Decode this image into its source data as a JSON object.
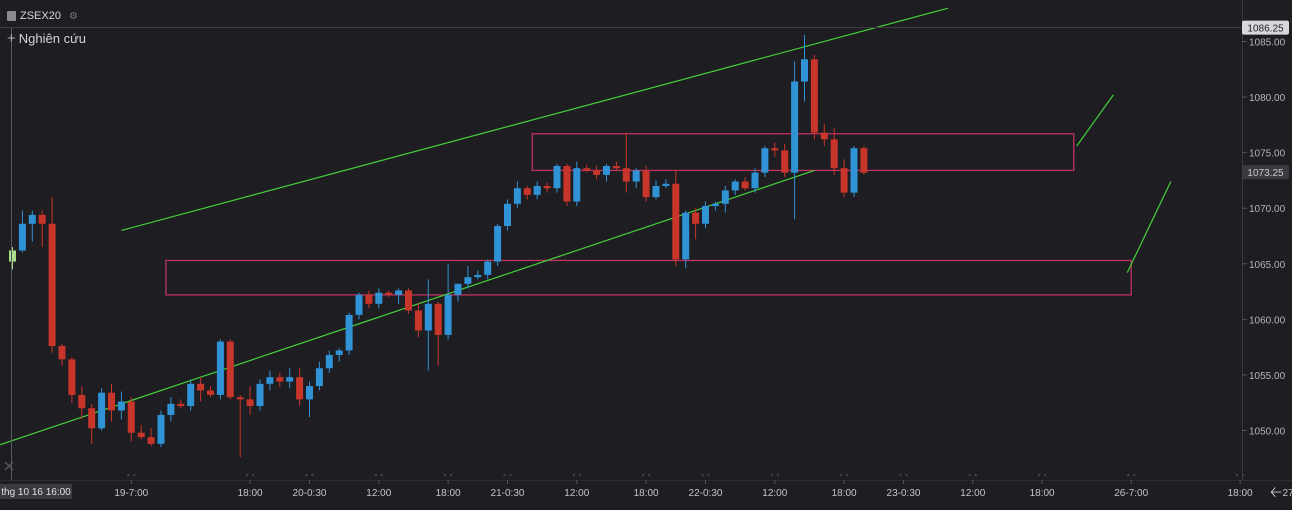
{
  "header": {
    "symbol": "ZSEX20",
    "study_label": "Nghiên cứu"
  },
  "price_labels": {
    "top": "1086.25",
    "current": "1073.25"
  },
  "footer": {
    "crosshair_time": "thg 10 16 16:00",
    "back_icon": "arrow-left-icon"
  },
  "chart_data": {
    "type": "candlestick",
    "title": "ZSEX20",
    "ylim": [
      1046.5,
      1087.5
    ],
    "yticks": [
      1050,
      1055,
      1060,
      1065,
      1070,
      1075,
      1080,
      1085
    ],
    "ytick_labels": [
      "1050.00",
      "1055.00",
      "1060.00",
      "1065.00",
      "1070.00",
      "1075.00",
      "1080.00",
      "1085.00"
    ],
    "xlim": [
      0,
      180
    ],
    "xticks": [
      {
        "x": 12,
        "label": "19-7:00"
      },
      {
        "x": 24,
        "label": "18:00"
      },
      {
        "x": 30,
        "label": "20-0:30"
      },
      {
        "x": 37,
        "label": "12:00"
      },
      {
        "x": 44,
        "label": "18:00"
      },
      {
        "x": 50,
        "label": "21-0:30"
      },
      {
        "x": 57,
        "label": "12:00"
      },
      {
        "x": 64,
        "label": "18:00"
      },
      {
        "x": 70,
        "label": "22-0:30"
      },
      {
        "x": 77,
        "label": "12:00"
      },
      {
        "x": 84,
        "label": "18:00"
      },
      {
        "x": 90,
        "label": "23-0:30"
      },
      {
        "x": 97,
        "label": "12:00"
      },
      {
        "x": 104,
        "label": "18:00"
      },
      {
        "x": 113,
        "label": "26-7:00"
      },
      {
        "x": 124,
        "label": "18:00"
      },
      {
        "x": 130,
        "label": "27-0:30"
      }
    ],
    "colors": {
      "up": "#2f93d6",
      "down": "#c8352a",
      "trend": "#44d13a",
      "zone": "#c0335e",
      "first": "#a6e08a"
    },
    "candles": [
      [
        1065.2,
        1066.5,
        1064.5,
        1066.2
      ],
      [
        1066.2,
        1069.8,
        1066.0,
        1068.6
      ],
      [
        1068.6,
        1069.8,
        1067.0,
        1069.4
      ],
      [
        1069.4,
        1069.8,
        1066.5,
        1068.6
      ],
      [
        1068.6,
        1071.0,
        1057.0,
        1057.6
      ],
      [
        1057.6,
        1057.8,
        1055.8,
        1056.4
      ],
      [
        1056.4,
        1056.6,
        1052.5,
        1053.2
      ],
      [
        1053.2,
        1054.0,
        1051.0,
        1052.0
      ],
      [
        1052.0,
        1052.4,
        1048.8,
        1050.2
      ],
      [
        1050.2,
        1053.8,
        1050.0,
        1053.4
      ],
      [
        1053.4,
        1054.2,
        1050.8,
        1051.8
      ],
      [
        1051.8,
        1053.5,
        1051.0,
        1052.6
      ],
      [
        1052.6,
        1053.0,
        1049.0,
        1049.8
      ],
      [
        1049.8,
        1050.5,
        1049.2,
        1049.4
      ],
      [
        1049.4,
        1050.2,
        1048.6,
        1048.8
      ],
      [
        1048.8,
        1051.8,
        1048.5,
        1051.4
      ],
      [
        1051.4,
        1053.0,
        1050.8,
        1052.4
      ],
      [
        1052.4,
        1052.8,
        1052.0,
        1052.2
      ],
      [
        1052.2,
        1054.6,
        1051.8,
        1054.2
      ],
      [
        1054.2,
        1054.8,
        1052.6,
        1053.6
      ],
      [
        1053.6,
        1054.0,
        1053.0,
        1053.2
      ],
      [
        1053.2,
        1058.2,
        1052.8,
        1058.0
      ],
      [
        1058.0,
        1058.2,
        1052.8,
        1053.0
      ],
      [
        1053.0,
        1053.2,
        1047.6,
        1052.8
      ],
      [
        1052.8,
        1054.0,
        1051.4,
        1052.2
      ],
      [
        1052.2,
        1054.6,
        1051.8,
        1054.2
      ],
      [
        1054.2,
        1055.4,
        1053.6,
        1054.8
      ],
      [
        1054.8,
        1055.2,
        1053.9,
        1054.4
      ],
      [
        1054.4,
        1055.6,
        1053.8,
        1054.8
      ],
      [
        1054.8,
        1055.6,
        1052.2,
        1052.8
      ],
      [
        1052.8,
        1054.4,
        1051.2,
        1054.0
      ],
      [
        1054.0,
        1056.2,
        1053.6,
        1055.6
      ],
      [
        1055.6,
        1057.2,
        1055.2,
        1056.8
      ],
      [
        1056.8,
        1057.4,
        1056.2,
        1057.2
      ],
      [
        1057.2,
        1060.6,
        1056.8,
        1060.4
      ],
      [
        1060.4,
        1062.4,
        1060.0,
        1062.2
      ],
      [
        1062.2,
        1062.6,
        1061.0,
        1061.4
      ],
      [
        1061.4,
        1062.8,
        1061.0,
        1062.4
      ],
      [
        1062.4,
        1062.6,
        1062.0,
        1062.2
      ],
      [
        1062.2,
        1062.8,
        1061.4,
        1062.6
      ],
      [
        1062.6,
        1062.8,
        1060.5,
        1060.8
      ],
      [
        1060.8,
        1061.5,
        1058.4,
        1059.0
      ],
      [
        1059.0,
        1063.6,
        1055.4,
        1061.4
      ],
      [
        1061.4,
        1061.6,
        1055.8,
        1058.6
      ],
      [
        1058.6,
        1065.0,
        1058.2,
        1062.2
      ],
      [
        1062.2,
        1063.2,
        1061.6,
        1063.2
      ],
      [
        1063.2,
        1064.8,
        1062.8,
        1063.8
      ],
      [
        1063.8,
        1064.4,
        1063.6,
        1064.0
      ],
      [
        1064.0,
        1065.4,
        1063.6,
        1065.2
      ],
      [
        1065.2,
        1068.6,
        1064.8,
        1068.4
      ],
      [
        1068.4,
        1070.8,
        1068.0,
        1070.4
      ],
      [
        1070.4,
        1072.4,
        1070.0,
        1071.8
      ],
      [
        1071.8,
        1072.0,
        1070.8,
        1071.2
      ],
      [
        1071.2,
        1072.4,
        1070.8,
        1072.0
      ],
      [
        1072.0,
        1072.3,
        1071.4,
        1071.8
      ],
      [
        1071.8,
        1074.0,
        1071.4,
        1073.8
      ],
      [
        1073.8,
        1074.0,
        1070.2,
        1070.6
      ],
      [
        1070.6,
        1074.2,
        1070.2,
        1073.6
      ],
      [
        1073.6,
        1073.9,
        1073.2,
        1073.4
      ],
      [
        1073.4,
        1073.8,
        1072.6,
        1073.0
      ],
      [
        1073.0,
        1074.0,
        1072.4,
        1073.8
      ],
      [
        1073.8,
        1074.2,
        1073.4,
        1073.6
      ],
      [
        1073.6,
        1076.8,
        1071.4,
        1072.4
      ],
      [
        1072.4,
        1073.6,
        1071.8,
        1073.4
      ],
      [
        1073.4,
        1073.8,
        1070.6,
        1071.0
      ],
      [
        1071.0,
        1072.5,
        1070.8,
        1072.0
      ],
      [
        1072.0,
        1072.6,
        1071.8,
        1072.2
      ],
      [
        1072.2,
        1073.4,
        1064.8,
        1065.4
      ],
      [
        1065.4,
        1069.8,
        1064.6,
        1069.6
      ],
      [
        1069.6,
        1070.0,
        1067.2,
        1068.6
      ],
      [
        1068.6,
        1070.6,
        1068.2,
        1070.2
      ],
      [
        1070.2,
        1070.6,
        1069.8,
        1070.4
      ],
      [
        1070.4,
        1072.0,
        1069.6,
        1071.6
      ],
      [
        1071.6,
        1072.6,
        1071.2,
        1072.4
      ],
      [
        1072.4,
        1072.8,
        1071.6,
        1071.8
      ],
      [
        1071.8,
        1073.6,
        1071.4,
        1073.2
      ],
      [
        1073.2,
        1075.6,
        1072.8,
        1075.4
      ],
      [
        1075.4,
        1075.9,
        1074.6,
        1075.2
      ],
      [
        1075.2,
        1075.8,
        1072.8,
        1073.2
      ],
      [
        1073.2,
        1083.2,
        1069.0,
        1081.4
      ],
      [
        1081.4,
        1085.6,
        1079.6,
        1083.4
      ],
      [
        1083.4,
        1083.8,
        1076.2,
        1076.8
      ],
      [
        1076.8,
        1077.6,
        1075.6,
        1076.2
      ],
      [
        1076.2,
        1077.2,
        1073.0,
        1073.6
      ],
      [
        1073.6,
        1074.4,
        1071.0,
        1071.4
      ],
      [
        1071.4,
        1075.6,
        1071.0,
        1075.4
      ],
      [
        1075.4,
        1075.6,
        1073.0,
        1073.2
      ]
    ],
    "trendlines": [
      {
        "x": [
          -3,
          81
        ],
        "y": [
          1048.2,
          1073.4
        ]
      },
      {
        "x": [
          11,
          94.5
        ],
        "y": [
          1068.0,
          1088.0
        ]
      },
      {
        "x": [
          107.5,
          111.2
        ],
        "y": [
          1075.6,
          1080.2
        ]
      },
      {
        "x": [
          112.6,
          117.0
        ],
        "y": [
          1064.2,
          1072.4
        ]
      }
    ],
    "zones": [
      {
        "x0": 52.5,
        "x1": 107.2,
        "y0": 1073.4,
        "y1": 1076.7
      },
      {
        "x0": 15.5,
        "x1": 113.0,
        "y0": 1062.2,
        "y1": 1065.3
      }
    ]
  }
}
